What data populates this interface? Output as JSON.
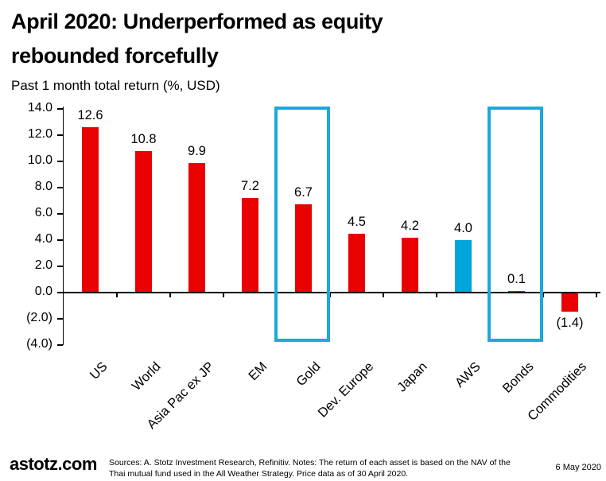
{
  "title_lines": [
    "April 2020: Underperformed as equity",
    "rebounded forcefully"
  ],
  "subtitle": "Past 1 month total return (%, USD)",
  "footer": {
    "logo": "astotz.com",
    "sources": "Sources: A. Stotz Investment Research, Refinitiv. Notes: The return of each asset is based on the NAV of the Thai mutual fund used in the All Weather Strategy. Price data as of 30 April 2020.",
    "date": "6 May 2020"
  },
  "colors": {
    "bar_red": "#E90000",
    "bar_blue": "#00A5DB",
    "highlight_box": "#1BA8DC",
    "axis": "#000000"
  },
  "chart_data": {
    "type": "bar",
    "title": "April 2020: Underperformed as equity rebounded forcefully",
    "ylabel": "Past 1 month total return (%, USD)",
    "categories": [
      "US",
      "World",
      "Asia Pac ex JP",
      "EM",
      "Gold",
      "Dev. Europe",
      "Japan",
      "AWS",
      "Bonds",
      "Commodities"
    ],
    "values": [
      12.6,
      10.8,
      9.9,
      7.2,
      6.7,
      4.5,
      4.2,
      4.0,
      0.1,
      -1.4
    ],
    "value_labels": [
      "12.6",
      "10.8",
      "9.9",
      "7.2",
      "6.7",
      "4.5",
      "4.2",
      "4.0",
      "0.1",
      "(1.4)"
    ],
    "bar_colors": [
      "#E90000",
      "#E90000",
      "#E90000",
      "#E90000",
      "#E90000",
      "#E90000",
      "#E90000",
      "#00A5DB",
      "#E90000",
      "#E90000"
    ],
    "yticks": [
      {
        "value": 14,
        "label": "14.0"
      },
      {
        "value": 12,
        "label": "12.0"
      },
      {
        "value": 10,
        "label": "10.0"
      },
      {
        "value": 8,
        "label": "8.0"
      },
      {
        "value": 6,
        "label": "6.0"
      },
      {
        "value": 4,
        "label": "4.0"
      },
      {
        "value": 2,
        "label": "2.0"
      },
      {
        "value": 0,
        "label": "0.0"
      },
      {
        "value": -2,
        "label": "(2.0)"
      },
      {
        "value": -4,
        "label": "(4.0)"
      }
    ],
    "ylim": [
      -4,
      14
    ],
    "highlighted_categories": [
      "Gold",
      "Bonds"
    ],
    "grid": false,
    "legend": false
  }
}
